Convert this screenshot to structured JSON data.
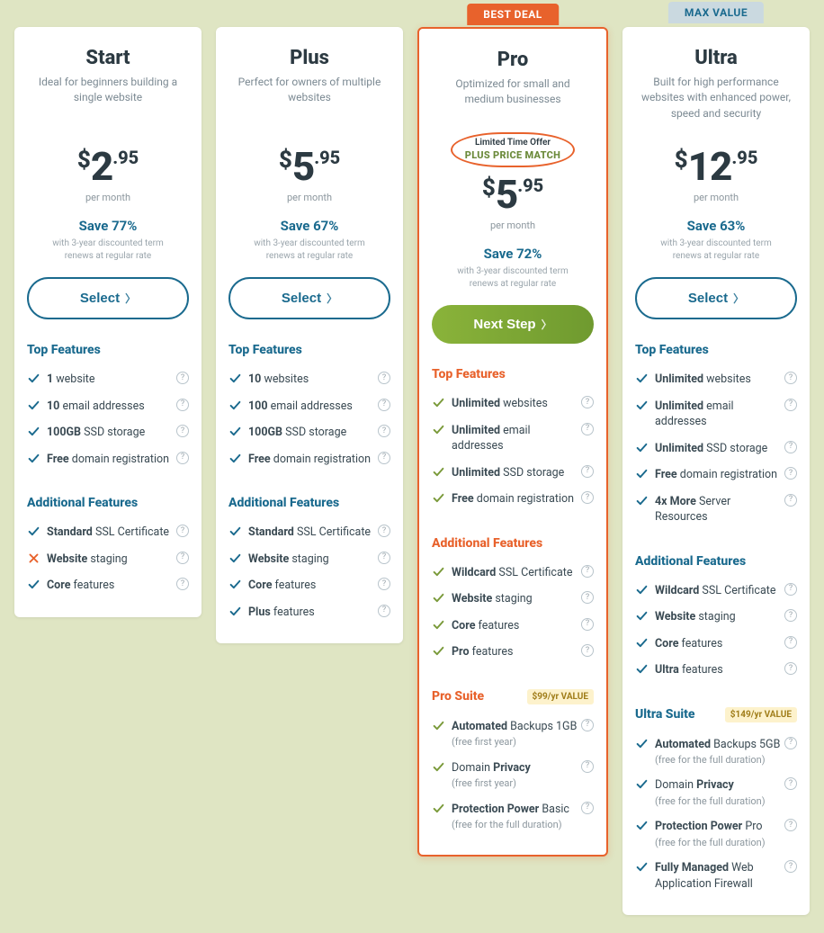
{
  "colors": {
    "page_bg": "#dfe5c3",
    "card_bg": "#ffffff",
    "text_dark": "#2c3a42",
    "text_muted": "#7c8a93",
    "accent_blue": "#1a6a8e",
    "accent_orange": "#e8622c",
    "accent_green": "#7a9a3a",
    "button_green_from": "#8ab33a",
    "button_green_to": "#6f9a2f",
    "banner_max_bg": "#cad9e0",
    "value_tag_bg": "#fdf2cc",
    "value_tag_text": "#a07d1a"
  },
  "common": {
    "per_month": "per month",
    "fineprint_1": "with 3-year discounted term",
    "fineprint_2": "renews at regular rate",
    "top_features": "Top Features",
    "additional_features": "Additional Features",
    "select_label": "Select",
    "next_step_label": "Next Step"
  },
  "plans": [
    {
      "id": "start",
      "name": "Start",
      "desc": "Ideal for beginners building a single website",
      "currency": "$",
      "price_whole": "2",
      "price_cents": ".95",
      "save": "Save 77%",
      "cta": "select",
      "heading_color": "blue",
      "check_color": "blue",
      "top": [
        {
          "bold": "1",
          "rest": " website",
          "mark": "check"
        },
        {
          "bold": "10",
          "rest": " email addresses",
          "mark": "check"
        },
        {
          "bold": "100GB",
          "rest": " SSD storage",
          "mark": "check"
        },
        {
          "bold": "Free",
          "rest": " domain registration",
          "mark": "check"
        }
      ],
      "additional": [
        {
          "bold": "Standard",
          "rest": " SSL Certificate",
          "mark": "check"
        },
        {
          "bold": "Website",
          "rest": " staging",
          "mark": "x"
        },
        {
          "bold": "Core",
          "rest": " features",
          "mark": "check"
        }
      ]
    },
    {
      "id": "plus",
      "name": "Plus",
      "desc": "Perfect for owners of multiple websites",
      "currency": "$",
      "price_whole": "5",
      "price_cents": ".95",
      "save": "Save 67%",
      "cta": "select",
      "heading_color": "blue",
      "check_color": "blue",
      "top": [
        {
          "bold": "10",
          "rest": " websites",
          "mark": "check"
        },
        {
          "bold": "100",
          "rest": " email addresses",
          "mark": "check"
        },
        {
          "bold": "100GB",
          "rest": " SSD storage",
          "mark": "check"
        },
        {
          "bold": "Free",
          "rest": " domain registration",
          "mark": "check"
        }
      ],
      "additional": [
        {
          "bold": "Standard",
          "rest": " SSL Certificate",
          "mark": "check"
        },
        {
          "bold": "Website",
          "rest": " staging",
          "mark": "check"
        },
        {
          "bold": "Core",
          "rest": " features",
          "mark": "check"
        },
        {
          "bold": "Plus",
          "rest": " features",
          "mark": "check"
        }
      ]
    },
    {
      "id": "pro",
      "name": "Pro",
      "desc": "Optimized for small and medium businesses",
      "banner": "BEST DEAL",
      "banner_style": "best",
      "highlight": true,
      "offer_top": "Limited Time Offer",
      "offer_bottom": "PLUS PRICE MATCH",
      "currency": "$",
      "price_whole": "5",
      "price_cents": ".95",
      "save": "Save 72%",
      "cta": "next",
      "heading_color": "orange",
      "check_color": "green",
      "top": [
        {
          "bold": "Unlimited",
          "rest": " websites",
          "mark": "check"
        },
        {
          "bold": "Unlimited",
          "rest": " email addresses",
          "mark": "check"
        },
        {
          "bold": "Unlimited",
          "rest": " SSD storage",
          "mark": "check"
        },
        {
          "bold": "Free",
          "rest": " domain registration",
          "mark": "check"
        }
      ],
      "additional": [
        {
          "bold": "Wildcard",
          "rest": " SSL Certificate",
          "mark": "check"
        },
        {
          "bold": "Website",
          "rest": " staging",
          "mark": "check"
        },
        {
          "bold": "Core",
          "rest": " features",
          "mark": "check"
        },
        {
          "bold": "Pro",
          "rest": " features",
          "mark": "check"
        }
      ],
      "suite_title": "Pro Suite",
      "suite_value": "$99/yr VALUE",
      "suite": [
        {
          "bold": "Automated",
          "rest": " Backups 1GB",
          "sub": "(free first year)",
          "mark": "check"
        },
        {
          "pre": "Domain ",
          "bold": "Privacy",
          "rest": "",
          "sub": "(free first year)",
          "mark": "check"
        },
        {
          "bold": "Protection Power",
          "rest": " Basic",
          "sub": "(free for the full duration)",
          "mark": "check"
        }
      ]
    },
    {
      "id": "ultra",
      "name": "Ultra",
      "desc": "Built for high performance websites with enhanced power, speed and security",
      "banner": "MAX VALUE",
      "banner_style": "max",
      "currency": "$",
      "price_whole": "12",
      "price_cents": ".95",
      "save": "Save 63%",
      "cta": "select",
      "heading_color": "blue",
      "check_color": "blue",
      "top": [
        {
          "bold": "Unlimited",
          "rest": " websites",
          "mark": "check"
        },
        {
          "bold": "Unlimited",
          "rest": " email addresses",
          "mark": "check"
        },
        {
          "bold": "Unlimited",
          "rest": " SSD storage",
          "mark": "check"
        },
        {
          "bold": "Free",
          "rest": " domain registration",
          "mark": "check"
        },
        {
          "bold": "4x More",
          "rest": " Server Resources",
          "mark": "check"
        }
      ],
      "additional": [
        {
          "bold": "Wildcard",
          "rest": " SSL Certificate",
          "mark": "check"
        },
        {
          "bold": "Website",
          "rest": " staging",
          "mark": "check"
        },
        {
          "bold": "Core",
          "rest": " features",
          "mark": "check"
        },
        {
          "bold": "Ultra",
          "rest": " features",
          "mark": "check"
        }
      ],
      "suite_title": "Ultra Suite",
      "suite_value": "$149/yr VALUE",
      "suite": [
        {
          "bold": "Automated",
          "rest": " Backups 5GB",
          "sub": "(free for the full duration)",
          "mark": "check"
        },
        {
          "pre": "Domain ",
          "bold": "Privacy",
          "rest": "",
          "sub": "(free for the full duration)",
          "mark": "check"
        },
        {
          "bold": "Protection Power",
          "rest": " Pro",
          "sub": "(free for the full duration)",
          "mark": "check"
        },
        {
          "bold": "Fully Managed",
          "rest": " Web Application Firewall",
          "mark": "check"
        }
      ]
    }
  ]
}
